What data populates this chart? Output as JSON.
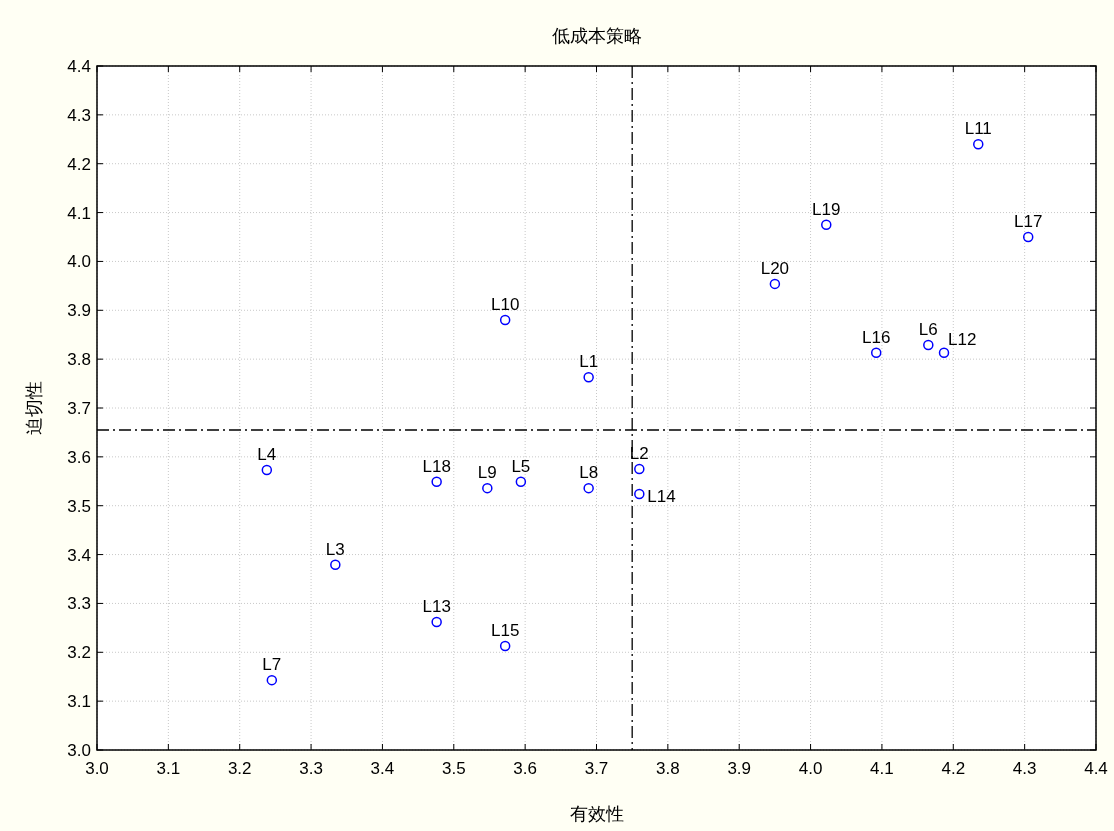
{
  "chart_data": {
    "type": "scatter",
    "title": "低成本策略",
    "xlabel": "有效性",
    "ylabel": "迫切性",
    "xlim": [
      3.0,
      4.4
    ],
    "xticks": [
      {
        "value": 3,
        "label": "3.0"
      },
      3.1,
      3.2,
      3.3,
      3.4,
      3.5,
      3.6,
      3.7,
      3.8,
      3.9,
      {
        "value": 4,
        "label": "4.0"
      },
      4.1,
      4.2,
      4.3,
      4.4
    ],
    "ylim": [
      3.0,
      4.4
    ],
    "yticks": [
      {
        "value": 3,
        "label": "3.0"
      },
      3.1,
      3.2,
      3.3,
      3.4,
      3.5,
      3.6,
      3.7,
      3.8,
      3.9,
      {
        "value": 4,
        "label": "4.0"
      },
      4.1,
      4.2,
      4.3,
      4.4
    ],
    "grid": true,
    "marker": "circle",
    "series": [
      {
        "color": "#0000ff",
        "x": [
          3.689,
          3.76,
          3.334,
          3.238,
          3.594,
          4.165,
          3.245,
          3.689,
          3.547,
          3.572,
          4.235,
          4.187,
          3.476,
          3.76,
          3.572,
          4.092,
          4.305,
          3.476,
          4.022,
          3.95
        ],
        "values": [
          3.763,
          3.575,
          3.379,
          3.573,
          3.549,
          3.829,
          3.143,
          3.536,
          3.536,
          3.88,
          4.24,
          3.813,
          3.262,
          3.524,
          3.213,
          3.813,
          4.05,
          3.549,
          4.075,
          3.954
        ]
      }
    ],
    "annotations": [
      {
        "text": "L1",
        "x": 3.689,
        "y": 3.763
      },
      {
        "text": "L2",
        "x": 3.76,
        "y": 3.575
      },
      {
        "text": "L3",
        "x": 3.334,
        "y": 3.379
      },
      {
        "text": "L4",
        "x": 3.238,
        "y": 3.573
      },
      {
        "text": "L5",
        "x": 3.594,
        "y": 3.549
      },
      {
        "text": "L6",
        "x": 4.165,
        "y": 3.829
      },
      {
        "text": "L7",
        "x": 3.245,
        "y": 3.143
      },
      {
        "text": "L8",
        "x": 3.689,
        "y": 3.536
      },
      {
        "text": "L9",
        "x": 3.547,
        "y": 3.536
      },
      {
        "text": "L10",
        "x": 3.572,
        "y": 3.88
      },
      {
        "text": "L11",
        "x": 4.235,
        "y": 4.24
      },
      {
        "text": "L12",
        "x": 4.187,
        "y": 3.813
      },
      {
        "text": "L13",
        "x": 3.476,
        "y": 3.262
      },
      {
        "text": "L14",
        "x": 3.76,
        "y": 3.524
      },
      {
        "text": "L15",
        "x": 3.572,
        "y": 3.213
      },
      {
        "text": "L16",
        "x": 4.092,
        "y": 3.813
      },
      {
        "text": "L17",
        "x": 4.305,
        "y": 4.05
      },
      {
        "text": "L18",
        "x": 3.476,
        "y": 3.549
      },
      {
        "text": "L19",
        "x": 4.022,
        "y": 4.075
      },
      {
        "text": "L20",
        "x": 3.95,
        "y": 3.954
      }
    ],
    "ref_lines": [
      {
        "axis": "x",
        "value": 3.75,
        "color": "#000000",
        "line_style": "dashdot"
      },
      {
        "axis": "y",
        "value": 3.655,
        "color": "#000000",
        "line_style": "dashdot"
      }
    ]
  }
}
